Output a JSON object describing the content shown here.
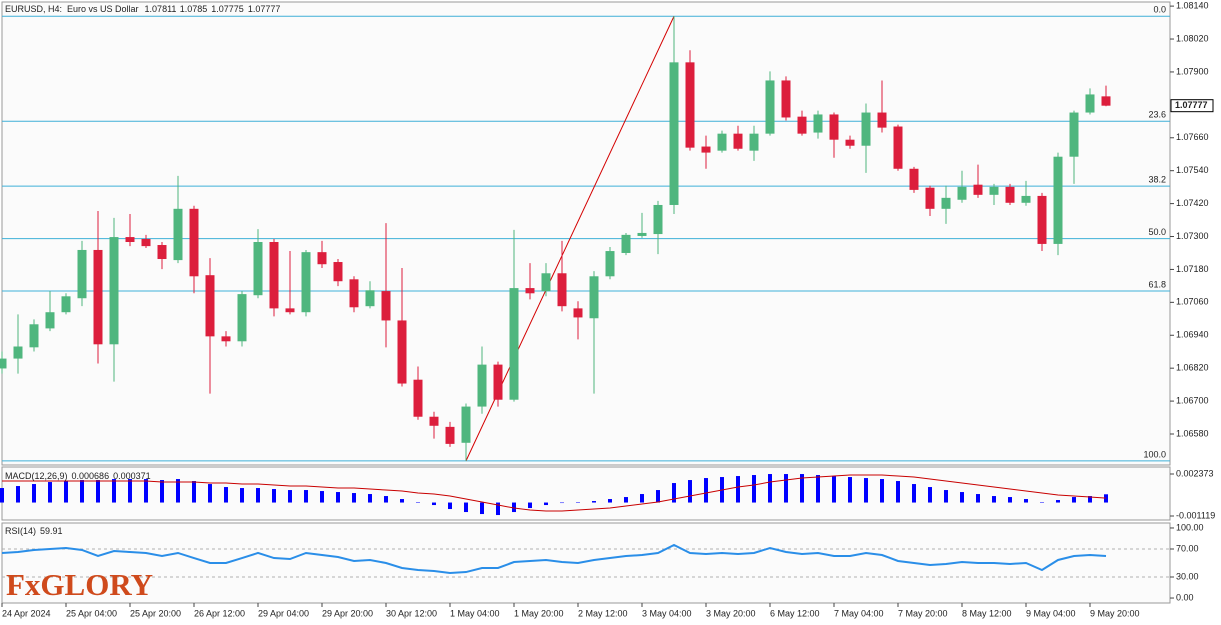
{
  "logo": "FxGLORY",
  "chart_data": [
    {
      "type": "candlestick",
      "title": "EURUSD, H4:  Euro vs US Dollar",
      "categories": [
        "24 Apr 2024",
        null,
        null,
        null,
        "25 Apr 04:00",
        null,
        null,
        null,
        "25 Apr 20:00",
        null,
        null,
        null,
        "26 Apr 12:00",
        null,
        null,
        null,
        "29 Apr 04:00",
        null,
        null,
        null,
        "29 Apr 20:00",
        null,
        null,
        null,
        "30 Apr 12:00",
        null,
        null,
        null,
        "1 May 04:00",
        null,
        null,
        null,
        "1 May 20:00",
        null,
        null,
        null,
        "2 May 12:00",
        null,
        null,
        null,
        "3 May 04:00",
        null,
        null,
        null,
        "3 May 20:00",
        null,
        null,
        null,
        "6 May 12:00",
        null,
        null,
        null,
        "7 May 04:00",
        null,
        null,
        null,
        "7 May 20:00",
        null,
        null,
        null,
        "8 May 12:00",
        null,
        null,
        null,
        "9 May 04:00",
        null,
        null,
        null,
        "9 May 20:00",
        null
      ],
      "open": [
        1.06819,
        1.06855,
        1.06896,
        1.06965,
        1.07024,
        1.07075,
        1.07251,
        1.06907,
        1.07298,
        1.07291,
        1.07269,
        1.07214,
        1.07401,
        1.07159,
        1.06936,
        1.06918,
        1.07086,
        1.0728,
        1.07038,
        1.07024,
        1.07243,
        1.07207,
        1.07144,
        1.07046,
        1.07101,
        1.06994,
        1.06778,
        1.06643,
        1.06606,
        1.06548,
        1.0668,
        1.06833,
        1.06705,
        1.07112,
        1.07101,
        1.07166,
        1.07038,
        1.07002,
        1.07155,
        1.0724,
        1.07302,
        1.07309,
        1.07415,
        1.07935,
        1.07628,
        1.07613,
        1.07675,
        1.07613,
        1.07675,
        1.07869,
        1.07737,
        1.07679,
        1.07745,
        1.07653,
        1.07631,
        1.07752,
        1.07701,
        1.07547,
        1.07478,
        1.07401,
        1.07434,
        1.07489,
        1.07452,
        1.07481,
        1.07423,
        1.07448,
        1.07273,
        1.07591,
        1.07752,
        1.07811
      ],
      "high": [
        1.06881,
        1.07016,
        1.06998,
        1.07101,
        1.07093,
        1.07284,
        1.07393,
        1.07368,
        1.07382,
        1.07306,
        1.0728,
        1.07521,
        1.07412,
        1.07221,
        1.06955,
        1.07101,
        1.07327,
        1.07291,
        1.07247,
        1.07251,
        1.07284,
        1.07218,
        1.07155,
        1.07137,
        1.07349,
        1.07185,
        1.06826,
        1.06661,
        1.06624,
        1.06691,
        1.06899,
        1.06844,
        1.07324,
        1.07203,
        1.07203,
        1.07284,
        1.07064,
        1.07174,
        1.07262,
        1.07313,
        1.07386,
        1.0743,
        1.08103,
        1.07979,
        1.07668,
        1.07686,
        1.07704,
        1.07704,
        1.07902,
        1.07884,
        1.07759,
        1.07759,
        1.07752,
        1.07668,
        1.07785,
        1.07869,
        1.07708,
        1.07554,
        1.07485,
        1.07485,
        1.0754,
        1.07562,
        1.07492,
        1.07492,
        1.07503,
        1.07459,
        1.07606,
        1.07759,
        1.0784,
        1.0785
      ],
      "low": [
        1.068,
        1.068,
        1.06881,
        1.06955,
        1.07016,
        1.07046,
        1.06837,
        1.06771,
        1.07265,
        1.07258,
        1.07181,
        1.07203,
        1.07093,
        1.06727,
        1.06899,
        1.06899,
        1.07075,
        1.07009,
        1.07016,
        1.07009,
        1.07185,
        1.07119,
        1.07024,
        1.07038,
        1.06896,
        1.06753,
        1.06632,
        1.06563,
        1.06533,
        1.06482,
        1.06654,
        1.0668,
        1.06698,
        1.07071,
        1.07082,
        1.07027,
        1.06925,
        1.06727,
        1.07144,
        1.07232,
        1.07295,
        1.07236,
        1.07382,
        1.07613,
        1.07547,
        1.07606,
        1.07613,
        1.07576,
        1.07668,
        1.07723,
        1.07668,
        1.07657,
        1.07587,
        1.0762,
        1.07532,
        1.07679,
        1.0754,
        1.07459,
        1.07375,
        1.07346,
        1.07423,
        1.07441,
        1.07415,
        1.07415,
        1.07412,
        1.07247,
        1.07232,
        1.07492,
        1.07745,
        1.07775
      ],
      "close": [
        1.06855,
        1.06899,
        1.0698,
        1.07024,
        1.07082,
        1.07251,
        1.06907,
        1.07298,
        1.0728,
        1.07265,
        1.07218,
        1.07401,
        1.07155,
        1.06936,
        1.06918,
        1.0709,
        1.0728,
        1.07038,
        1.07024,
        1.07243,
        1.07199,
        1.07137,
        1.07042,
        1.07104,
        1.06994,
        1.06764,
        1.06643,
        1.0661,
        1.06544,
        1.0668,
        1.06833,
        1.06705,
        1.07112,
        1.07093,
        1.07166,
        1.07046,
        1.07005,
        1.07155,
        1.07247,
        1.07306,
        1.07313,
        1.07415,
        1.07935,
        1.07624,
        1.07606,
        1.07675,
        1.0762,
        1.07675,
        1.07869,
        1.07734,
        1.07675,
        1.07745,
        1.07653,
        1.07631,
        1.07752,
        1.07697,
        1.07547,
        1.0747,
        1.07401,
        1.07441,
        1.07481,
        1.07452,
        1.07481,
        1.07423,
        1.07448,
        1.07273,
        1.07591,
        1.07752,
        1.07818,
        1.07777
      ],
      "up_color": "#4fb67e",
      "down_color": "#dc1e3c",
      "ylim": [
        1.06467,
        1.08155
      ],
      "yticks": [
        {
          "value": 1.0814,
          "label": "1.08140"
        },
        {
          "value": 1.0802,
          "label": "1.08020"
        },
        {
          "value": 1.079,
          "label": "1.07900"
        },
        {
          "value": 1.0766,
          "label": "1.07660"
        },
        {
          "value": 1.0754,
          "label": "1.07540"
        },
        {
          "value": 1.0742,
          "label": "1.07420"
        },
        {
          "value": 1.073,
          "label": "1.07300"
        },
        {
          "value": 1.0718,
          "label": "1.07180"
        },
        {
          "value": 1.0706,
          "label": "1.07060"
        },
        {
          "value": 1.0694,
          "label": "1.06940"
        },
        {
          "value": 1.0682,
          "label": "1.06820"
        },
        {
          "value": 1.067,
          "label": "1.06700"
        },
        {
          "value": 1.0658,
          "label": "1.06580"
        }
      ],
      "fib_levels": [
        {
          "value": 0,
          "label": "0.0"
        },
        23.6,
        38.2,
        {
          "value": 50,
          "label": "50.0"
        },
        61.8,
        {
          "value": 100,
          "label": "100.0"
        }
      ],
      "fib_color": "#3fb0d8",
      "trendline_color": "#d40000"
    },
    {
      "type": "macd",
      "title": "MACD(12,26,9)",
      "series": [
        {
          "color": "#0000ff",
          "values": [
            0.001206,
            0.001372,
            0.001538,
            0.001705,
            0.001788,
            0.001871,
            0.001871,
            0.001954,
            0.001954,
            0.001954,
            0.001871,
            0.001954,
            0.001788,
            0.001538,
            0.001289,
            0.001206,
            0.001206,
            0.001123,
            0.001039,
            0.001039,
            0.000956,
            0.000873,
            0.00079,
            0.000707,
            0.00054,
            0.000291,
            4.2e-05,
            -0.000208,
            -0.00054,
            -0.00079,
            -0.000956,
            -0.001039,
            -0.00079,
            -0.000457,
            -0.000208,
            -4.2e-05,
            1.7e-05,
            0.000125,
            0.000291,
            0.000457,
            0.000707,
            0.001039,
            0.001621,
            0.001871,
            0.002037,
            0.00212,
            0.002203,
            0.002287,
            0.00237,
            0.00237,
            0.00237,
            0.002287,
            0.002203,
            0.00212,
            0.002037,
            0.001954,
            0.001788,
            0.001538,
            0.001289,
            0.001039,
            0.000873,
            0.000707,
            0.00054,
            0.000457,
            0.000291,
            4.2e-05,
            0.000208,
            0.000457,
            0.00054,
            0.000686
          ]
        },
        {
          "color": "#c80000",
          "values": [
            0.001788,
            0.001788,
            0.001788,
            0.001788,
            0.001788,
            0.001788,
            0.001788,
            0.001788,
            0.001788,
            0.001788,
            0.001705,
            0.001705,
            0.001705,
            0.001621,
            0.001621,
            0.001538,
            0.001538,
            0.001455,
            0.001372,
            0.001372,
            0.001289,
            0.001206,
            0.001206,
            0.001123,
            0.001039,
            0.000956,
            0.00079,
            0.000707,
            0.00054,
            0.000291,
            4.2e-05,
            -0.000208,
            -0.000457,
            -0.000624,
            -0.000707,
            -0.000707,
            -0.000624,
            -0.00054,
            -0.000457,
            -0.000291,
            -0.000125,
            4.2e-05,
            0.000291,
            0.00054,
            0.00079,
            0.001039,
            0.001289,
            0.001455,
            0.001705,
            0.001871,
            0.002037,
            0.00212,
            0.002203,
            0.002287,
            0.002287,
            0.002287,
            0.002203,
            0.00212,
            0.001954,
            0.001788,
            0.001621,
            0.001455,
            0.001289,
            0.001123,
            0.000956,
            0.00079,
            0.000624,
            0.00054,
            0.000457,
            0.000371
          ]
        }
      ],
      "ylim": [
        -0.001452,
        0.002955
      ],
      "yticks": [
        0.002373,
        -0.001119
      ]
    },
    {
      "type": "rsi",
      "title": "RSI(14)",
      "series": [
        {
          "color": "#2a8ee8",
          "values": [
            64.3,
            65.7,
            68.6,
            70,
            71.4,
            68.6,
            60,
            67.1,
            65.7,
            64.3,
            60,
            64.3,
            57.1,
            50,
            50,
            57.1,
            64.3,
            57.1,
            55.7,
            64.3,
            61.4,
            58.6,
            52.9,
            54.3,
            50,
            42.9,
            40,
            38.6,
            35.7,
            37.1,
            42.9,
            42.9,
            51.4,
            52.9,
            54.3,
            51.4,
            50,
            54.3,
            57.1,
            60,
            61.4,
            64.3,
            75.7,
            64.3,
            62.9,
            64.3,
            62.9,
            64.3,
            71.4,
            65.7,
            62.9,
            64.3,
            60,
            60,
            64.3,
            61.4,
            52.9,
            50,
            47.1,
            48.6,
            51.4,
            50,
            50,
            48.6,
            50,
            40,
            54.3,
            60,
            61.4,
            59.91
          ]
        }
      ],
      "ylim": [
        -7.1,
        107.1
      ],
      "yticks": [
        {
          "value": 100,
          "label": "100.00"
        },
        {
          "value": 70,
          "label": "70.00"
        },
        {
          "value": 30,
          "label": "30.00"
        },
        {
          "value": 0,
          "label": "0.00"
        }
      ],
      "levels": [
        70,
        30
      ]
    }
  ]
}
